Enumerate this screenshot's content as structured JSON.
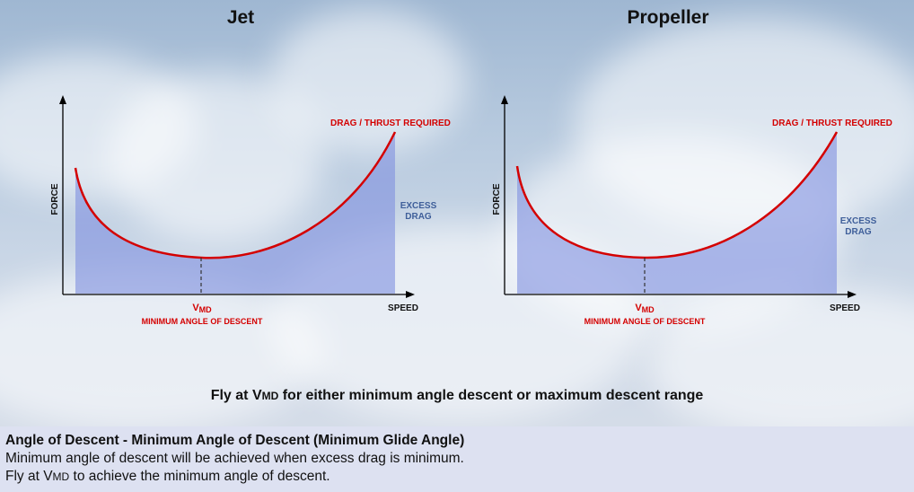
{
  "diagrams": [
    {
      "title": "Jet",
      "curve_label": "DRAG / THRUST REQUIRED",
      "excess_label": [
        "EXCESS",
        "DRAG"
      ],
      "y_axis_label": "FORCE",
      "x_axis_label": "SPEED",
      "vmd_label": {
        "main": "V",
        "sub": "MD"
      },
      "vmd_caption": "MINIMUM ANGLE OF DESCENT"
    },
    {
      "title": "Propeller",
      "curve_label": "DRAG / THRUST REQUIRED",
      "excess_label": [
        "EXCESS",
        "DRAG"
      ],
      "y_axis_label": "FORCE",
      "x_axis_label": "SPEED",
      "vmd_label": {
        "main": "V",
        "sub": "MD"
      },
      "vmd_caption": "MINIMUM ANGLE OF DESCENT"
    }
  ],
  "caption": {
    "before": "Fly at V",
    "sub": "MD",
    "after": " for either minimum angle descent or maximum descent range"
  },
  "text": {
    "heading": "Angle of Descent - Minimum Angle of Descent (Minimum Glide Angle)",
    "line1": "Minimum angle of descent will be achieved when excess drag is minimum.",
    "line2_before": "Fly at V",
    "line2_sub": "MD",
    "line2_after": " to achieve the minimum angle of descent."
  },
  "colors": {
    "curve": "#d40000",
    "fill": "#7f8fe0",
    "excess_text": "#3f5f9a",
    "text_panel": "#dde1f1"
  }
}
